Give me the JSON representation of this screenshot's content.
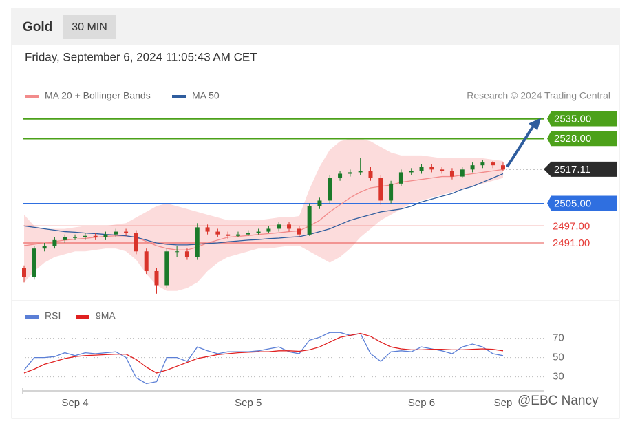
{
  "header": {
    "symbol": "Gold",
    "interval": "30 MIN",
    "timestamp": "Friday, September 6, 2024 11:05:43 AM CET"
  },
  "chart_data": [
    {
      "type": "candlestick",
      "attribution": "Research © 2024 Trading Central",
      "ylim": [
        2471,
        2540
      ],
      "up_color": "#1b7a2a",
      "down_color": "#d9342b",
      "band_color": "#fbd3d3",
      "ohlc": {
        "open": [
          2482,
          2479,
          2489,
          2490,
          2492,
          2493,
          2493,
          2493.5,
          2493,
          2494,
          2495,
          2494.5,
          2488,
          2481,
          2476,
          2488,
          2488,
          2486,
          2496.5,
          2495,
          2494,
          2493.5,
          2494,
          2494.5,
          2495,
          2496,
          2497.5,
          2496,
          2494,
          2504,
          2506,
          2514,
          2515.5,
          2516,
          2516.5,
          2514,
          2506,
          2512,
          2516,
          2516.5,
          2518,
          2517,
          2516.5,
          2514.5,
          2517,
          2518.5,
          2519.5,
          2518.5
        ],
        "high": [
          2483,
          2490,
          2491,
          2493,
          2494,
          2494,
          2494.5,
          2494.5,
          2495,
          2496,
          2496,
          2495.5,
          2489,
          2482,
          2489,
          2490,
          2489,
          2498,
          2497.5,
          2496,
          2495,
          2495,
          2495.5,
          2496,
          2497,
          2498.5,
          2498.5,
          2497,
          2505,
          2507,
          2515,
          2516.5,
          2517,
          2521,
          2518,
          2515,
          2513,
          2517,
          2517.5,
          2519,
          2519,
          2518,
          2517.5,
          2518,
          2519.5,
          2520.5,
          2520,
          2519.5
        ],
        "low": [
          2477,
          2478,
          2488,
          2489,
          2491,
          2492,
          2492,
          2492,
          2492,
          2493,
          2493.5,
          2487,
          2480,
          2473,
          2475,
          2486,
          2485,
          2485,
          2494,
          2493,
          2492.5,
          2493,
          2493.5,
          2494,
          2494.5,
          2495,
          2495,
          2493,
          2493.5,
          2503,
          2505,
          2513,
          2514.5,
          2515,
          2513,
          2504.5,
          2505,
          2511,
          2515,
          2515.5,
          2516,
          2515.5,
          2513.5,
          2514,
          2516,
          2517.5,
          2517.5,
          2516.5
        ],
        "close": [
          2479,
          2489,
          2490,
          2492,
          2493,
          2493,
          2493.5,
          2493,
          2494,
          2495,
          2494.5,
          2488,
          2481,
          2476,
          2488,
          2488,
          2486,
          2496.5,
          2495,
          2494,
          2493.5,
          2494,
          2494.5,
          2495,
          2496,
          2497.5,
          2496,
          2494,
          2504,
          2506,
          2514,
          2515.5,
          2516,
          2516.5,
          2514,
          2506,
          2512,
          2516,
          2516.5,
          2518,
          2517,
          2516.5,
          2514.5,
          2517,
          2518.5,
          2519.5,
          2518.5,
          2517
        ]
      },
      "series": [
        {
          "name": "MA 20 + Bollinger Bands",
          "color": "#f28b8b",
          "values": [
            2490,
            2490.5,
            2491,
            2491.5,
            2492,
            2492.3,
            2492.6,
            2493,
            2493.3,
            2493.5,
            2493.5,
            2493,
            2491.5,
            2490,
            2489,
            2488.5,
            2488.5,
            2489.5,
            2491,
            2492,
            2493,
            2493.3,
            2493.6,
            2494,
            2494.3,
            2494.6,
            2495,
            2495.3,
            2497,
            2499,
            2502,
            2504.5,
            2507,
            2509,
            2510.5,
            2511,
            2511.5,
            2512.5,
            2513,
            2513.5,
            2514,
            2514.5,
            2514.5,
            2515,
            2515.5,
            2516,
            2516.5,
            2517
          ],
          "upper": [
            2501,
            2497,
            2496,
            2496,
            2496,
            2496.5,
            2497,
            2497,
            2497,
            2497.5,
            2498,
            2500,
            2502,
            2504,
            2505,
            2504,
            2503,
            2502,
            2501,
            2500,
            2499,
            2499,
            2499,
            2499,
            2499.5,
            2500,
            2500,
            2500.5,
            2510,
            2518,
            2524,
            2527,
            2528,
            2528,
            2527,
            2525,
            2523,
            2522,
            2522,
            2522,
            2521.5,
            2521,
            2521,
            2521,
            2521,
            2521,
            2520.5,
            2520
          ],
          "lower": [
            2477,
            2481,
            2484,
            2486,
            2487,
            2488,
            2488,
            2488.5,
            2489,
            2489,
            2488,
            2485,
            2480,
            2476,
            2474,
            2474,
            2475,
            2477,
            2481,
            2484,
            2486,
            2487,
            2488,
            2489,
            2489,
            2489.5,
            2490,
            2490,
            2488,
            2486,
            2484,
            2486,
            2489,
            2493,
            2496,
            2499,
            2501,
            2503,
            2505,
            2506,
            2507,
            2508,
            2509,
            2510,
            2511,
            2512,
            2513,
            2514
          ]
        },
        {
          "name": "MA 50",
          "color": "#2f5d9e",
          "values": [
            2497,
            2496.5,
            2496,
            2495.5,
            2495,
            2494.8,
            2494.5,
            2494.3,
            2494,
            2493.8,
            2493.5,
            2493,
            2492,
            2491,
            2490.5,
            2490.3,
            2490.3,
            2490.5,
            2490.8,
            2491,
            2491.4,
            2491.7,
            2492,
            2492.2,
            2492.5,
            2492.7,
            2493,
            2493.2,
            2494,
            2495,
            2496,
            2497.5,
            2499,
            2500,
            2501,
            2502,
            2502.5,
            2503,
            2504,
            2505.5,
            2506.5,
            2507.5,
            2508.5,
            2510,
            2511,
            2512.5,
            2514,
            2515.5
          ]
        }
      ],
      "levels": [
        {
          "value": 2535,
          "label": "2535.00",
          "color": "#4ca11a",
          "style": "box"
        },
        {
          "value": 2528,
          "label": "2528.00",
          "color": "#4ca11a",
          "style": "box"
        },
        {
          "value": 2517.11,
          "label": "2517.11",
          "color": "#2b2b2b",
          "style": "box-dotted"
        },
        {
          "value": 2505,
          "label": "2505.00",
          "color": "#2f6fe0",
          "style": "box"
        },
        {
          "value": 2497,
          "label": "2497.00",
          "color": "#e53935",
          "style": "text"
        },
        {
          "value": 2491,
          "label": "2491.00",
          "color": "#e53935",
          "style": "text"
        }
      ]
    },
    {
      "type": "line",
      "categories": [
        null,
        null,
        null,
        null,
        null,
        "Sep 4",
        null,
        null,
        null,
        null,
        null,
        null,
        null,
        null,
        null,
        null,
        null,
        null,
        null,
        null,
        null,
        null,
        "Sep 5",
        null,
        null,
        null,
        null,
        null,
        null,
        null,
        null,
        null,
        null,
        null,
        null,
        null,
        null,
        null,
        null,
        "Sep 6",
        null,
        null,
        null,
        null,
        null,
        null,
        null,
        "Sep"
      ],
      "ylim": [
        14,
        84
      ],
      "yticks": [
        30,
        50,
        70
      ],
      "grid": true,
      "series": [
        {
          "name": "RSI",
          "color": "#5b7fd6",
          "values": [
            37,
            50,
            50,
            51,
            55,
            52,
            55,
            54,
            55,
            56,
            50,
            29,
            23,
            25,
            50,
            50,
            46,
            61,
            57,
            54,
            56,
            56,
            56,
            57,
            59,
            61,
            56,
            54,
            68,
            71,
            76,
            76,
            73,
            75,
            54,
            46,
            56,
            57,
            56,
            61,
            59,
            57,
            54,
            61,
            64,
            61,
            54,
            52
          ]
        },
        {
          "name": "9MA",
          "color": "#e02020",
          "values": [
            34,
            38,
            43,
            46,
            49,
            51,
            52,
            52.5,
            53,
            53.5,
            53.5,
            48,
            40,
            34,
            37,
            41,
            45,
            49,
            51,
            53,
            54,
            55,
            55.5,
            56,
            56,
            57,
            57,
            56.5,
            58,
            61,
            66,
            71,
            73,
            75,
            72,
            66,
            61,
            59,
            58,
            58,
            58.5,
            58.5,
            58,
            58,
            58.5,
            59,
            58.5,
            57
          ]
        }
      ]
    }
  ],
  "watermark": "@EBC Nancy"
}
